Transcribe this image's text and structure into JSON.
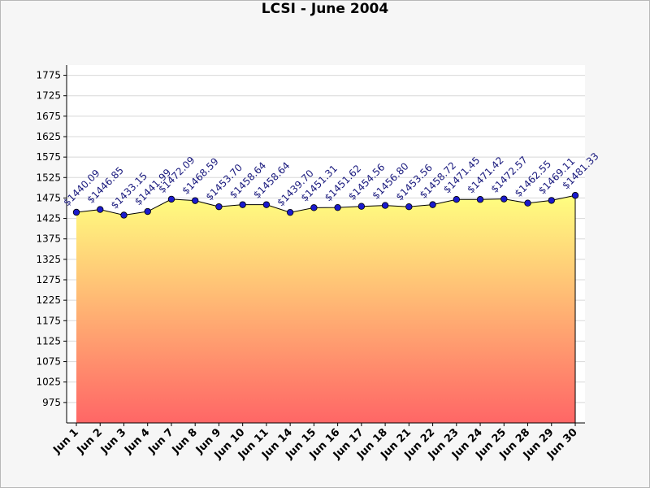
{
  "chart_data": {
    "type": "area",
    "title": "LCSI - June 2004",
    "xlabel": "",
    "ylabel": "",
    "ylim": [
      925,
      1800
    ],
    "yticks": [
      975,
      1025,
      1075,
      1125,
      1175,
      1225,
      1275,
      1325,
      1375,
      1425,
      1475,
      1525,
      1575,
      1625,
      1675,
      1725,
      1775
    ],
    "grid": true,
    "categories": [
      "Jun 1",
      "Jun 2",
      "Jun 3",
      "Jun 4",
      "Jun 7",
      "Jun 8",
      "Jun 9",
      "Jun 10",
      "Jun 11",
      "Jun 14",
      "Jun 15",
      "Jun 16",
      "Jun 17",
      "Jun 18",
      "Jun 21",
      "Jun 22",
      "Jun 23",
      "Jun 24",
      "Jun 25",
      "Jun 28",
      "Jun 29",
      "Jun 30"
    ],
    "values": [
      1440.09,
      1446.85,
      1433.15,
      1441.99,
      1472.09,
      1468.59,
      1453.7,
      1458.64,
      1458.64,
      1439.7,
      1451.31,
      1451.62,
      1454.56,
      1456.8,
      1453.56,
      1458.72,
      1471.45,
      1471.42,
      1472.57,
      1462.55,
      1469.11,
      1481.33
    ],
    "data_labels": [
      "$1440.09",
      "$1446.85",
      "$1433.15",
      "$1441.99",
      "$1472.09",
      "$1468.59",
      "$1453.70",
      "$1458.64",
      "$1458.64",
      "$1439.70",
      "$1451.31",
      "$1451.62",
      "$1454.56",
      "$1456.80",
      "$1453.56",
      "$1458.72",
      "$1471.45",
      "$1471.42",
      "$1472.57",
      "$1462.55",
      "$1469.11",
      "$1481.33"
    ],
    "colors": {
      "fill_top": "#ffff80",
      "fill_bottom": "#ff6666",
      "line": "#000000",
      "marker": "#1a1acc",
      "label": "#1a1a7e",
      "grid": "#d8d8d8"
    }
  }
}
